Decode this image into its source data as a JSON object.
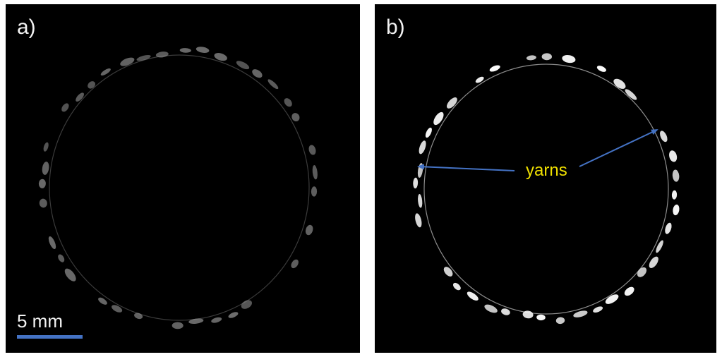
{
  "panels": [
    {
      "label": "a)",
      "name": "raw-ct-cross-section"
    },
    {
      "label": "b)",
      "name": "segmented-ct-cross-section"
    }
  ],
  "scale_bar": {
    "text": "5 mm",
    "color": "#4472c4"
  },
  "annotation": {
    "text": "yarns",
    "text_color": "#f0e000",
    "arrow_color": "#4472c4"
  },
  "colors": {
    "background": "#000000",
    "yarn_raw": "#9a9a9a",
    "yarn_segmented": "#ffffff"
  }
}
